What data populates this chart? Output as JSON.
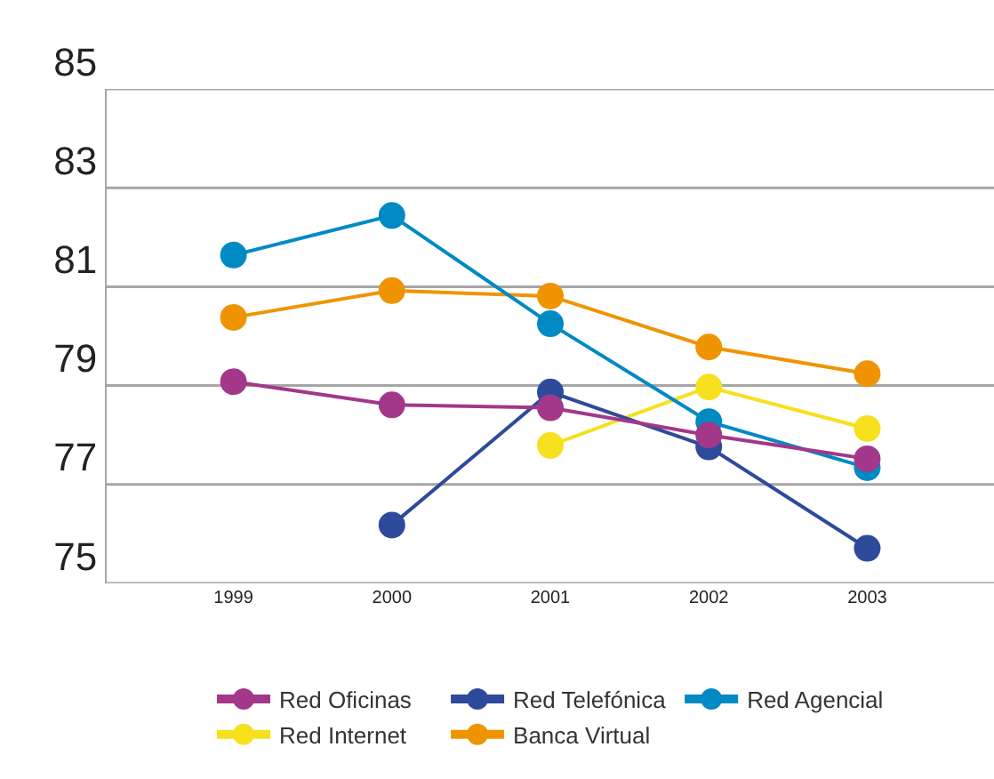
{
  "chart_data": {
    "type": "line",
    "categories": [
      "1999",
      "2000",
      "2001",
      "2002",
      "2003"
    ],
    "series": [
      {
        "name": "Red Oficinas",
        "color": "#a3378a",
        "values": [
          79.08,
          78.61,
          78.55,
          78.0,
          77.52
        ]
      },
      {
        "name": "Red Telefónica",
        "color": "#2e4a9b",
        "values": [
          null,
          76.18,
          78.87,
          77.76,
          75.71
        ]
      },
      {
        "name": "Red Agencial",
        "color": "#008ac4",
        "values": [
          81.64,
          82.44,
          80.25,
          78.27,
          77.34
        ]
      },
      {
        "name": "Red Internet",
        "color": "#f7e01e",
        "values": [
          null,
          null,
          77.79,
          78.97,
          78.13
        ]
      },
      {
        "name": "Banca Virtual",
        "color": "#ef9400",
        "values": [
          80.38,
          80.92,
          80.81,
          79.78,
          79.24
        ]
      }
    ],
    "ylim": [
      75,
      85
    ],
    "yticks": [
      75,
      77,
      79,
      81,
      83,
      85
    ],
    "grid": "y",
    "legend": "bottom",
    "marker": "circle",
    "line_style": "solid"
  }
}
